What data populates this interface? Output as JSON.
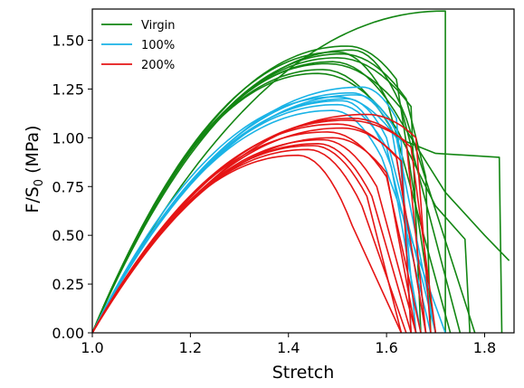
{
  "chart_data": {
    "type": "line",
    "xlabel": "Stretch",
    "ylabel_main": "F/S",
    "ylabel_sub": "0",
    "ylabel_unit": " (MPa)",
    "xlim": [
      1.0,
      1.86
    ],
    "ylim": [
      0.0,
      1.66
    ],
    "xticks": [
      1.0,
      1.2,
      1.4,
      1.6,
      1.8
    ],
    "xtick_labels": [
      "1.0",
      "1.2",
      "1.4",
      "1.6",
      "1.8"
    ],
    "yticks": [
      0.0,
      0.25,
      0.5,
      0.75,
      1.0,
      1.25,
      1.5
    ],
    "ytick_labels": [
      "0.00",
      "0.25",
      "0.50",
      "0.75",
      "1.00",
      "1.25",
      "1.50"
    ],
    "grid": false,
    "legend_position": "top-left",
    "groups": [
      {
        "name": "Virgin",
        "color": "#138613",
        "curves": [
          {
            "peak": [
              1.5,
              1.41
            ],
            "end": [
              1.65,
              1.16
            ],
            "drop": [
              1.67,
              0.0
            ]
          },
          {
            "peak": [
              1.52,
              1.47
            ],
            "end": [
              1.62,
              1.3
            ],
            "drop": [
              1.7,
              0.0
            ]
          },
          {
            "peak": [
              1.5,
              1.44
            ],
            "end": [
              1.6,
              1.2
            ],
            "drop": [
              1.73,
              0.0
            ]
          },
          {
            "peak": [
              1.48,
              1.38
            ],
            "end": [
              1.63,
              1.15
            ],
            "drop": [
              1.75,
              0.0
            ]
          },
          {
            "peak": [
              1.53,
              1.45
            ],
            "end": [
              1.64,
              1.1
            ],
            "drop": [
              1.78,
              0.0
            ]
          },
          {
            "peak": [
              1.72,
              1.65
            ],
            "end": [
              1.72,
              1.65
            ],
            "drop": [
              1.72,
              0.0
            ]
          },
          {
            "peak": [
              1.47,
              1.35
            ],
            "end": [
              1.62,
              1.0
            ],
            "tail": [
              [
                1.7,
                0.92
              ],
              [
                1.83,
                0.9
              ]
            ],
            "drop": [
              1.835,
              0.0
            ]
          },
          {
            "peak": [
              1.49,
              1.39
            ],
            "end": [
              1.63,
              1.08
            ],
            "tail": [
              [
                1.72,
                0.72
              ],
              [
                1.8,
                0.5
              ],
              [
                1.85,
                0.37
              ]
            ]
          },
          {
            "peak": [
              1.46,
              1.33
            ],
            "end": [
              1.62,
              1.05
            ],
            "tail": [
              [
                1.7,
                0.65
              ],
              [
                1.76,
                0.48
              ]
            ],
            "drop": [
              1.77,
              0.0
            ]
          },
          {
            "peak": [
              1.51,
              1.43
            ],
            "end": [
              1.64,
              1.2
            ],
            "tail": [
              [
                1.68,
                0.8
              ]
            ],
            "drop": [
              1.69,
              0.0
            ]
          }
        ]
      },
      {
        "name": "100%",
        "color": "#1ab3e6",
        "curves": [
          {
            "peak": [
              1.55,
              1.26
            ],
            "end": [
              1.62,
              1.1
            ],
            "drop": [
              1.66,
              0.0
            ]
          },
          {
            "peak": [
              1.53,
              1.23
            ],
            "end": [
              1.61,
              1.05
            ],
            "drop": [
              1.68,
              0.0
            ]
          },
          {
            "peak": [
              1.52,
              1.2
            ],
            "end": [
              1.6,
              1.0
            ],
            "drop": [
              1.7,
              0.0
            ]
          },
          {
            "peak": [
              1.5,
              1.17
            ],
            "end": [
              1.6,
              0.95
            ],
            "drop": [
              1.69,
              0.0
            ]
          },
          {
            "peak": [
              1.49,
              1.14
            ],
            "end": [
              1.59,
              0.9
            ],
            "drop": [
              1.72,
              0.0
            ]
          },
          {
            "peak": [
              1.54,
              1.22
            ],
            "end": [
              1.63,
              0.98
            ],
            "drop": [
              1.65,
              0.0
            ]
          },
          {
            "peak": [
              1.51,
              1.19
            ],
            "end": [
              1.61,
              0.85
            ],
            "drop": [
              1.67,
              0.0
            ]
          },
          {
            "peak": [
              1.5,
              1.21
            ],
            "end": [
              1.62,
              1.0
            ],
            "drop": [
              1.7,
              0.0
            ]
          }
        ]
      },
      {
        "name": "200%",
        "color": "#e51515",
        "curves": [
          {
            "peak": [
              1.56,
              1.12
            ],
            "end": [
              1.66,
              1.0
            ],
            "drop": [
              1.69,
              0.0
            ]
          },
          {
            "peak": [
              1.53,
              1.1
            ],
            "end": [
              1.65,
              0.95
            ],
            "drop": [
              1.7,
              0.0
            ]
          },
          {
            "peak": [
              1.5,
              1.07
            ],
            "end": [
              1.62,
              0.9
            ],
            "drop": [
              1.68,
              0.0
            ]
          },
          {
            "peak": [
              1.48,
              1.03
            ],
            "end": [
              1.6,
              0.8
            ],
            "drop": [
              1.67,
              0.0
            ]
          },
          {
            "peak": [
              1.47,
              0.99
            ],
            "end": [
              1.58,
              0.75
            ],
            "drop": [
              1.66,
              0.0
            ]
          },
          {
            "peak": [
              1.46,
              0.97
            ],
            "end": [
              1.57,
              0.7
            ],
            "drop": [
              1.65,
              0.0
            ]
          },
          {
            "peak": [
              1.44,
              0.94
            ],
            "end": [
              1.55,
              0.65
            ],
            "drop": [
              1.64,
              0.0
            ]
          },
          {
            "peak": [
              1.42,
              0.91
            ],
            "end": [
              1.53,
              0.55
            ],
            "drop": [
              1.63,
              0.0
            ]
          },
          {
            "peak": [
              1.49,
              1.0
            ],
            "end": [
              1.6,
              0.82
            ],
            "drop": [
              1.66,
              0.0
            ]
          },
          {
            "peak": [
              1.51,
              1.05
            ],
            "end": [
              1.63,
              0.88
            ],
            "drop": [
              1.65,
              0.0
            ]
          },
          {
            "peak": [
              1.52,
              1.09
            ],
            "end": [
              1.64,
              0.98
            ],
            "drop": [
              1.68,
              0.0
            ]
          },
          {
            "peak": [
              1.45,
              0.96
            ],
            "end": [
              1.56,
              0.7
            ],
            "drop": [
              1.63,
              0.0
            ]
          }
        ]
      }
    ]
  }
}
